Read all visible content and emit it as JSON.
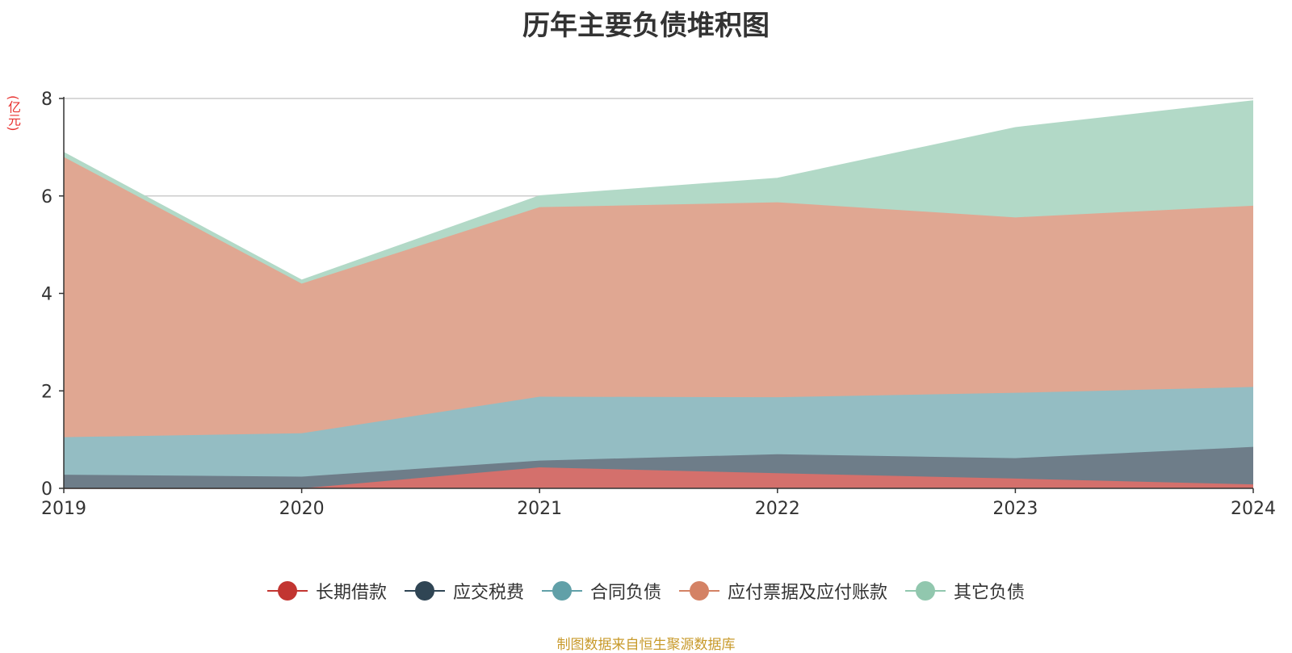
{
  "chart_data": {
    "type": "area",
    "stacked": true,
    "title": "历年主要负债堆积图",
    "unit_label": "(亿元)",
    "x": [
      "2019",
      "2020",
      "2021",
      "2022",
      "2023",
      "2024"
    ],
    "ylim": [
      0,
      8
    ],
    "yticks": [
      "0",
      "2",
      "4",
      "6",
      "8"
    ],
    "grid": true,
    "legend_position": "bottom",
    "series": [
      {
        "name": "长期借款",
        "color": "#c23531",
        "fill": "#d4706c",
        "values": [
          0,
          0,
          0.43,
          0.31,
          0.2,
          0.08
        ]
      },
      {
        "name": "应交税费",
        "color": "#2f4554",
        "fill": "#6e7d89",
        "values": [
          0.28,
          0.24,
          0.14,
          0.39,
          0.42,
          0.77
        ]
      },
      {
        "name": "合同负债",
        "color": "#61a0a8",
        "fill": "#94bdc3",
        "values": [
          0.77,
          0.89,
          1.31,
          1.17,
          1.34,
          1.23
        ]
      },
      {
        "name": "应付票据及应付账款",
        "color": "#d48265",
        "fill": "#e0a792",
        "values": [
          5.75,
          3.07,
          3.89,
          4.0,
          3.6,
          3.72
        ]
      },
      {
        "name": "其它负债",
        "color": "#91c7ae",
        "fill": "#b2d9c7",
        "values": [
          0.09,
          0.07,
          0.23,
          0.49,
          1.84,
          2.15
        ]
      }
    ]
  },
  "source_note": "制图数据来自恒生聚源数据库"
}
